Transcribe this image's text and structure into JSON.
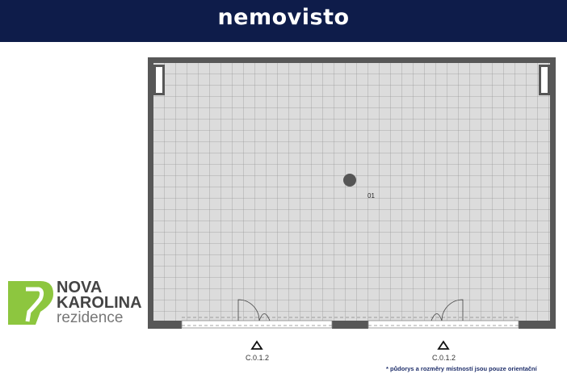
{
  "header": {
    "brand": "nemovisto",
    "background": "#0e1c4a"
  },
  "plan": {
    "room_label": "01",
    "entrances": [
      {
        "label": "C.0.1.2"
      },
      {
        "label": "C.0.1.2"
      }
    ],
    "note": "* půdorys a rozměry místností jsou pouze orientační"
  },
  "logo": {
    "number": "2",
    "line1": "NOVA",
    "line2": "KAROLINA",
    "line3": "rezidence",
    "accent": "#8dc63f"
  }
}
